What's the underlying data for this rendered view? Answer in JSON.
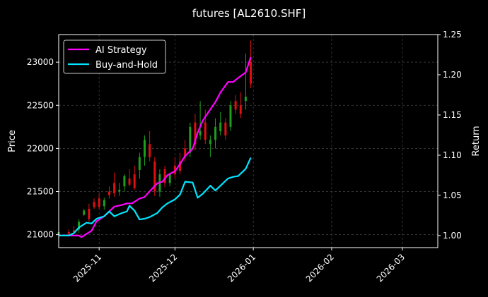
{
  "chart_data": {
    "type": "line",
    "title": "futures [AL2610.SHF]",
    "ylabel_left": "Price",
    "ylabel_right": "Return",
    "xlim": [
      "2025-10-16",
      "2026-03-15"
    ],
    "ylim_left": [
      20850,
      23320
    ],
    "ylim_right": [
      0.985,
      1.25
    ],
    "x_ticks": [
      "2025-11-01",
      "2025-12-01",
      "2026-01-01",
      "2026-02-01",
      "2026-03-01"
    ],
    "x_tick_labels": [
      "2025-11",
      "2025-12",
      "2026-01",
      "2026-02",
      "2026-03"
    ],
    "y_ticks_left": [
      21000,
      21500,
      22000,
      22500,
      23000
    ],
    "y_tick_labels_left": [
      "21000",
      "21500",
      "22000",
      "22500",
      "23000"
    ],
    "y_ticks_right": [
      1.0,
      1.05,
      1.1,
      1.15,
      1.2,
      1.25
    ],
    "y_tick_labels_right": [
      "1.00",
      "1.05",
      "1.10",
      "1.15",
      "1.20",
      "1.25"
    ],
    "grid": true,
    "legend_position": "top-left",
    "colors": {
      "background": "#000000",
      "grid": "#444444",
      "axis": "#ffffff",
      "up_candle": "#1f9d1f",
      "down_candle": "#e01010"
    },
    "series": [
      {
        "name": "AI Strategy",
        "color": "#ff00ff",
        "x": [
          "2025-10-16",
          "2025-10-20",
          "2025-10-22",
          "2025-10-24",
          "2025-10-25",
          "2025-10-27",
          "2025-10-29",
          "2025-10-31",
          "2025-11-03",
          "2025-11-05",
          "2025-11-07",
          "2025-11-10",
          "2025-11-12",
          "2025-11-14",
          "2025-11-17",
          "2025-11-19",
          "2025-11-21",
          "2025-11-24",
          "2025-11-26",
          "2025-11-28",
          "2025-12-01",
          "2025-12-03",
          "2025-12-05",
          "2025-12-08",
          "2025-12-10",
          "2025-12-12",
          "2025-12-15",
          "2025-12-17",
          "2025-12-19",
          "2025-12-22",
          "2025-12-24",
          "2025-12-26",
          "2025-12-29",
          "2025-12-31"
        ],
        "y": [
          1.0,
          1.0,
          1.0,
          1.0,
          0.998,
          1.002,
          1.006,
          1.018,
          1.024,
          1.03,
          1.036,
          1.038,
          1.04,
          1.04,
          1.046,
          1.048,
          1.055,
          1.065,
          1.067,
          1.075,
          1.08,
          1.089,
          1.099,
          1.108,
          1.128,
          1.143,
          1.157,
          1.166,
          1.178,
          1.191,
          1.191,
          1.196,
          1.203,
          1.222
        ]
      },
      {
        "name": "Buy-and-Hold",
        "color": "#00e5ff",
        "x": [
          "2025-10-16",
          "2025-10-20",
          "2025-10-22",
          "2025-10-24",
          "2025-10-27",
          "2025-10-29",
          "2025-10-31",
          "2025-11-03",
          "2025-11-05",
          "2025-11-07",
          "2025-11-10",
          "2025-11-12",
          "2025-11-13",
          "2025-11-15",
          "2025-11-17",
          "2025-11-19",
          "2025-11-21",
          "2025-11-24",
          "2025-11-26",
          "2025-11-28",
          "2025-12-01",
          "2025-12-03",
          "2025-12-05",
          "2025-12-08",
          "2025-12-10",
          "2025-12-12",
          "2025-12-15",
          "2025-12-17",
          "2025-12-19",
          "2025-12-22",
          "2025-12-24",
          "2025-12-26",
          "2025-12-29",
          "2025-12-31"
        ],
        "y": [
          1.0,
          1.0,
          1.003,
          1.01,
          1.016,
          1.015,
          1.021,
          1.024,
          1.03,
          1.024,
          1.028,
          1.03,
          1.037,
          1.031,
          1.02,
          1.021,
          1.023,
          1.028,
          1.035,
          1.04,
          1.045,
          1.051,
          1.067,
          1.066,
          1.047,
          1.052,
          1.062,
          1.056,
          1.062,
          1.071,
          1.073,
          1.074,
          1.083,
          1.097
        ]
      }
    ],
    "candles": [
      {
        "x": "2025-10-16",
        "o": 21000,
        "h": 21080,
        "l": 20990,
        "c": 21030
      },
      {
        "x": "2025-10-20",
        "o": 21030,
        "h": 21060,
        "l": 20990,
        "c": 21010
      },
      {
        "x": "2025-10-22",
        "o": 21050,
        "h": 21100,
        "l": 21000,
        "c": 21030
      },
      {
        "x": "2025-10-24",
        "o": 21060,
        "h": 21180,
        "l": 21020,
        "c": 21150
      },
      {
        "x": "2025-10-26",
        "o": 21230,
        "h": 21300,
        "l": 21220,
        "c": 21280
      },
      {
        "x": "2025-10-28",
        "o": 21300,
        "h": 21360,
        "l": 21150,
        "c": 21180
      },
      {
        "x": "2025-10-30",
        "o": 21380,
        "h": 21420,
        "l": 21300,
        "c": 21320
      },
      {
        "x": "2025-11-01",
        "o": 21420,
        "h": 21480,
        "l": 21300,
        "c": 21320
      },
      {
        "x": "2025-11-03",
        "o": 21330,
        "h": 21430,
        "l": 21290,
        "c": 21400
      },
      {
        "x": "2025-11-05",
        "o": 21500,
        "h": 21560,
        "l": 21420,
        "c": 21460
      },
      {
        "x": "2025-11-07",
        "o": 21600,
        "h": 21720,
        "l": 21440,
        "c": 21480
      },
      {
        "x": "2025-11-09",
        "o": 21500,
        "h": 21600,
        "l": 21450,
        "c": 21520
      },
      {
        "x": "2025-11-11",
        "o": 21560,
        "h": 21700,
        "l": 21500,
        "c": 21680
      },
      {
        "x": "2025-11-13",
        "o": 21650,
        "h": 21760,
        "l": 21560,
        "c": 21580
      },
      {
        "x": "2025-11-15",
        "o": 21700,
        "h": 21800,
        "l": 21520,
        "c": 21540
      },
      {
        "x": "2025-11-17",
        "o": 21750,
        "h": 21950,
        "l": 21650,
        "c": 21900
      },
      {
        "x": "2025-11-19",
        "o": 21900,
        "h": 22150,
        "l": 21800,
        "c": 22100
      },
      {
        "x": "2025-11-21",
        "o": 22050,
        "h": 22200,
        "l": 21850,
        "c": 21900
      },
      {
        "x": "2025-11-23",
        "o": 21850,
        "h": 21900,
        "l": 21450,
        "c": 21500
      },
      {
        "x": "2025-11-25",
        "o": 21500,
        "h": 21760,
        "l": 21440,
        "c": 21700
      },
      {
        "x": "2025-11-27",
        "o": 21760,
        "h": 21800,
        "l": 21550,
        "c": 21600
      },
      {
        "x": "2025-11-29",
        "o": 21600,
        "h": 21720,
        "l": 21560,
        "c": 21700
      },
      {
        "x": "2025-12-01",
        "o": 21800,
        "h": 21900,
        "l": 21650,
        "c": 21700
      },
      {
        "x": "2025-12-03",
        "o": 21850,
        "h": 21950,
        "l": 21700,
        "c": 21740
      },
      {
        "x": "2025-12-05",
        "o": 22000,
        "h": 22100,
        "l": 21850,
        "c": 21900
      },
      {
        "x": "2025-12-07",
        "o": 21950,
        "h": 22300,
        "l": 21900,
        "c": 22250
      },
      {
        "x": "2025-12-09",
        "o": 22300,
        "h": 22400,
        "l": 21980,
        "c": 22050
      },
      {
        "x": "2025-12-11",
        "o": 22150,
        "h": 22550,
        "l": 22100,
        "c": 22200
      },
      {
        "x": "2025-12-13",
        "o": 22300,
        "h": 22450,
        "l": 22050,
        "c": 22100
      },
      {
        "x": "2025-12-15",
        "o": 22050,
        "h": 22150,
        "l": 21900,
        "c": 22100
      },
      {
        "x": "2025-12-17",
        "o": 22100,
        "h": 22350,
        "l": 22000,
        "c": 22250
      },
      {
        "x": "2025-12-19",
        "o": 22200,
        "h": 22420,
        "l": 22150,
        "c": 22300
      },
      {
        "x": "2025-12-21",
        "o": 22300,
        "h": 22350,
        "l": 22100,
        "c": 22150
      },
      {
        "x": "2025-12-23",
        "o": 22250,
        "h": 22550,
        "l": 22200,
        "c": 22500
      },
      {
        "x": "2025-12-25",
        "o": 22550,
        "h": 22620,
        "l": 22400,
        "c": 22450
      },
      {
        "x": "2025-12-27",
        "o": 22500,
        "h": 22650,
        "l": 22350,
        "c": 22400
      },
      {
        "x": "2025-12-29",
        "o": 22550,
        "h": 23100,
        "l": 22450,
        "c": 22600
      },
      {
        "x": "2025-12-31",
        "o": 23000,
        "h": 23250,
        "l": 22700,
        "c": 22750
      }
    ]
  }
}
